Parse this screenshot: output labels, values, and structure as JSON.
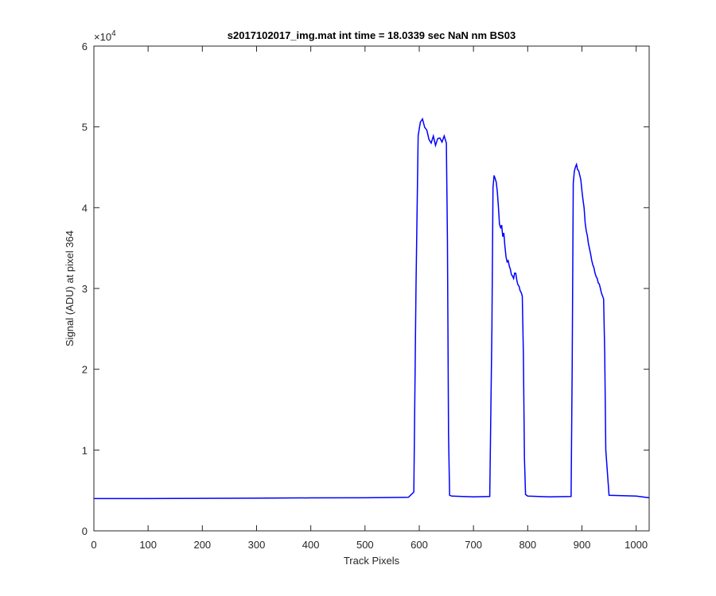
{
  "chart_data": {
    "type": "line",
    "title": "s2017102017_img.mat int time = 18.0339 sec  NaN nm BS03",
    "xlabel": "Track Pixels",
    "ylabel": "Signal (ADU) at pixel 364",
    "xlim": [
      0,
      1024
    ],
    "ylim": [
      0,
      60000
    ],
    "x_ticks": [
      0,
      100,
      200,
      300,
      400,
      500,
      600,
      700,
      800,
      900,
      1000
    ],
    "y_ticks": [
      0,
      1,
      2,
      3,
      4,
      5,
      6
    ],
    "y_tick_labels": [
      "0",
      "1",
      "2",
      "3",
      "4",
      "5",
      "6"
    ],
    "y_exponent_base": "×10",
    "y_exponent_power": "4",
    "grid": false,
    "line_color": "#0000ff",
    "series": [
      {
        "x": [
          0,
          100,
          200,
          300,
          400,
          500,
          580,
          590,
          594,
          598,
          602,
          606,
          610,
          614,
          618,
          622,
          626,
          630,
          634,
          638,
          642,
          646,
          650,
          652,
          654,
          656,
          660,
          700,
          730,
          734,
          736,
          738,
          740,
          742,
          744,
          746,
          748,
          750,
          752,
          754,
          756,
          758,
          760,
          762,
          764,
          766,
          768,
          770,
          772,
          774,
          776,
          778,
          780,
          782,
          784,
          786,
          788,
          790,
          792,
          794,
          796,
          800,
          840,
          880,
          882,
          884,
          886,
          888,
          890,
          892,
          894,
          896,
          898,
          900,
          902,
          904,
          906,
          908,
          910,
          912,
          914,
          916,
          918,
          920,
          922,
          924,
          926,
          928,
          930,
          932,
          934,
          936,
          938,
          940,
          942,
          944,
          950,
          1000,
          1024
        ],
        "y": [
          4000,
          4000,
          4020,
          4050,
          4080,
          4100,
          4150,
          4800,
          30000,
          49000,
          50500,
          51000,
          50000,
          49500,
          48500,
          48000,
          48800,
          47800,
          48500,
          48600,
          48200,
          48800,
          48000,
          36000,
          12000,
          4400,
          4300,
          4200,
          4250,
          25000,
          42500,
          44000,
          43500,
          43200,
          42000,
          40000,
          38000,
          37500,
          37800,
          36500,
          36800,
          35200,
          34000,
          33200,
          33500,
          32800,
          32300,
          31800,
          31500,
          31200,
          32000,
          31800,
          31000,
          30500,
          30200,
          29800,
          29500,
          29000,
          22000,
          9000,
          4500,
          4300,
          4200,
          4250,
          20000,
          43000,
          44500,
          45000,
          45300,
          44800,
          44500,
          44000,
          43500,
          42000,
          41000,
          40000,
          38000,
          37200,
          36500,
          35500,
          35000,
          34200,
          33500,
          33000,
          32500,
          32000,
          31500,
          31200,
          30800,
          30500,
          30000,
          29500,
          29000,
          28700,
          22000,
          10000,
          4400,
          4300,
          4100
        ]
      }
    ]
  }
}
